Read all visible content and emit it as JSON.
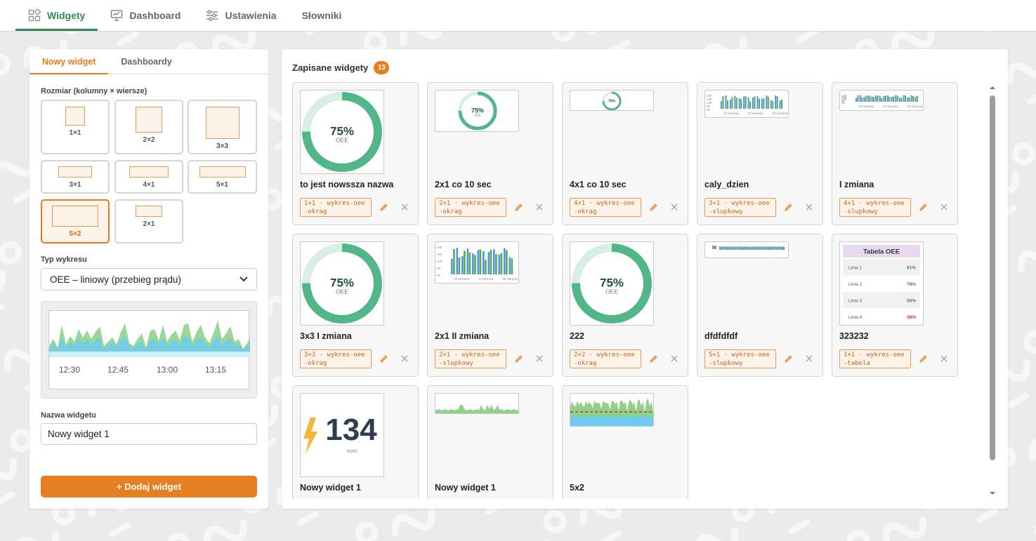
{
  "nav": {
    "tabs": [
      {
        "label": "Widgety",
        "icon": "widgets-grid-icon",
        "active": true
      },
      {
        "label": "Dashboard",
        "icon": "dashboard-monitor-icon",
        "active": false
      },
      {
        "label": "Ustawienia",
        "icon": "sliders-icon",
        "active": false
      },
      {
        "label": "Słowniki",
        "icon": "",
        "active": false
      }
    ]
  },
  "left": {
    "tabs": [
      {
        "label": "Nowy widget",
        "active": true
      },
      {
        "label": "Dashboardy",
        "active": false
      }
    ],
    "size_label": "Rozmiar (kolumny × wiersze)",
    "sizes": [
      "1×1",
      "2×2",
      "3×3",
      "3×1",
      "4×1",
      "5×1",
      "5×2",
      "2×1"
    ],
    "selected_size": "5×2",
    "chart_type_label": "Typ wykresu",
    "chart_type_value": "OEE – liniowy (przebieg prądu)",
    "preview_times": [
      "12:30",
      "12:45",
      "13:00",
      "13:15"
    ],
    "name_label": "Nazwa widgetu",
    "name_value": "Nowy widget 1",
    "add_button": "+ Dodaj widget"
  },
  "right": {
    "title": "Zapisane widgety",
    "count": "13",
    "cards": [
      {
        "name": "to jest nowssza nazwa",
        "tag": "1×1 · wykres-oee-okrag",
        "thumb": "donut-big",
        "donut_value": "75%",
        "donut_sub": "OEE"
      },
      {
        "name": "2x1 co 10 sec",
        "tag": "2×1 · wykres-oee-okrag",
        "thumb": "donut-2x1",
        "donut_value": "75%",
        "donut_sub": "OEE"
      },
      {
        "name": "4x1 co 10 sec",
        "tag": "4×1 · wykres-oee-okrag",
        "thumb": "donut-4x1",
        "donut_value": "75%",
        "donut_sub": ""
      },
      {
        "name": "caly_dzien",
        "tag": "3×1 · wykres-oee-slupkowy",
        "thumb": "bars-3x1"
      },
      {
        "name": "I zmiana",
        "tag": "4×1 · wykres-oee-slupkowy",
        "thumb": "bars-4x1"
      },
      {
        "name": "3x3 I zmiana",
        "tag": "3×3 · wykres-oee-okrag",
        "thumb": "donut-big",
        "donut_value": "75%",
        "donut_sub": "OEE"
      },
      {
        "name": "2x1 II zmiana",
        "tag": "2×1 · wykres-oee-slupkowy",
        "thumb": "bars-2x1"
      },
      {
        "name": "222",
        "tag": "2×2 · wykres-oee-okrag",
        "thumb": "donut-big",
        "donut_value": "75%",
        "donut_sub": "OEE"
      },
      {
        "name": "dfdfdfdf",
        "tag": "5×1 · wykres-oee-slupkowy",
        "thumb": "bars-5x1"
      },
      {
        "name": "323232",
        "tag": "1×1 · wykres-oee-tabela",
        "thumb": "table"
      },
      {
        "name": "Nowy widget 1",
        "tag": "",
        "thumb": "energy",
        "energy_value": "134",
        "energy_unit": "kVAh"
      },
      {
        "name": "Nowy widget 1",
        "tag": "",
        "thumb": "line-4x1"
      },
      {
        "name": "5x2",
        "tag": "",
        "thumb": "line-5x2"
      }
    ],
    "table_thumb": {
      "title": "Tabela OEE",
      "rows": [
        {
          "name": "Linia 1",
          "value": "91%",
          "color": "#2e8b57"
        },
        {
          "name": "Linia 2",
          "value": "78%",
          "color": "#2e8b57"
        },
        {
          "name": "Linia 3",
          "value": "55%",
          "color": "#2e8b57"
        },
        {
          "name": "Linia 4",
          "value": "38%",
          "color": "#c0392b"
        }
      ]
    },
    "bar_axis_labels": [
      "10 sierpnia",
      "13 sierpnia",
      "16 sierpnia"
    ],
    "bar_y_labels": [
      "24h",
      "18h",
      "12h",
      "6h",
      "0h"
    ]
  },
  "colors": {
    "accent_green": "#2e8b57",
    "accent_orange": "#e67e22",
    "donut_green": "#52b788",
    "donut_track": "#d8efe3",
    "bar_blue": "#5b8def",
    "bar_green": "#4caf50"
  }
}
